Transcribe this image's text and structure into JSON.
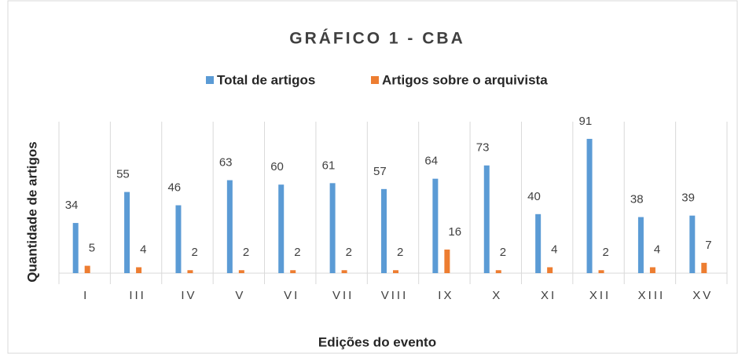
{
  "chart_data": {
    "type": "bar",
    "title": "GRÁFICO 1 - CBA",
    "x_label": "Edições do evento",
    "y_label": "Quantidade de artigos",
    "categories": [
      "I",
      "III",
      "IV",
      "V",
      "VI",
      "VII",
      "VIII",
      "IX",
      "X",
      "XI",
      "XII",
      "XIII",
      "XV"
    ],
    "series": [
      {
        "name": "Total de artigos",
        "color": "#5b9bd5",
        "values": [
          34,
          55,
          46,
          63,
          60,
          61,
          57,
          64,
          73,
          40,
          91,
          38,
          39
        ]
      },
      {
        "name": "Artigos sobre o arquivista",
        "color": "#ed7d31",
        "values": [
          5,
          4,
          2,
          2,
          2,
          2,
          2,
          16,
          2,
          4,
          2,
          4,
          7
        ]
      }
    ],
    "ylim": [
      0,
      100
    ]
  }
}
